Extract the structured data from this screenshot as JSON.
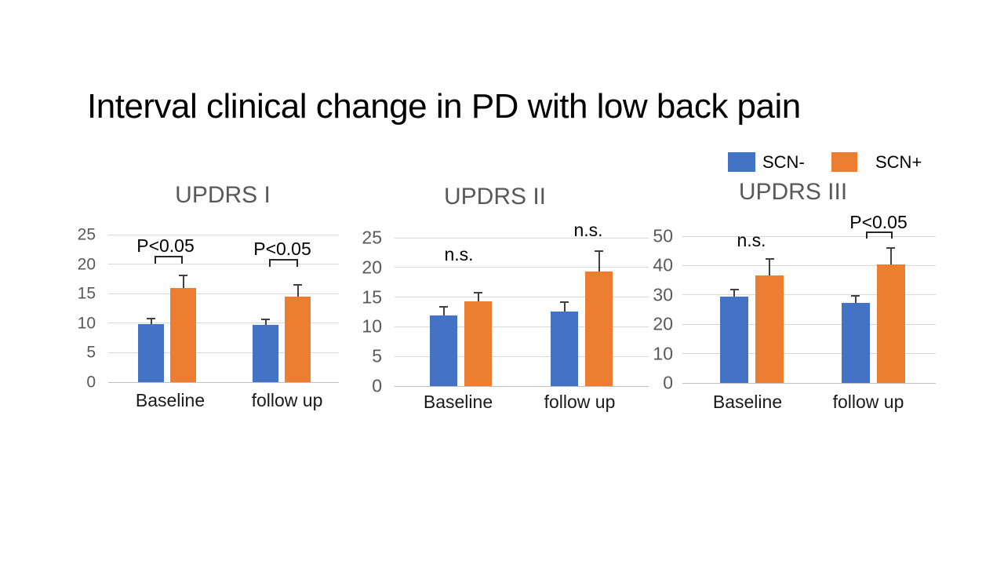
{
  "slide": {
    "title": "Interval clinical change in PD with low back pain"
  },
  "legend": {
    "items": [
      {
        "label": "SCN-",
        "color": "#4472C4"
      },
      {
        "label": "SCN+",
        "color": "#ED7D31"
      }
    ]
  },
  "colors": {
    "series_scn_minus": "#4472C4",
    "series_scn_plus": "#ED7D31",
    "chart_title_gray": "#595959",
    "gridline": "#D9D9D9",
    "axis_line": "#BFBFBF",
    "error_bar": "#404040"
  },
  "chart_data": [
    {
      "type": "bar",
      "title": "UPDRS I",
      "categories": [
        "Baseline",
        "follow up"
      ],
      "series": [
        {
          "name": "SCN-",
          "color": "#4472C4",
          "values": [
            9.8,
            9.7
          ],
          "errors_plus": [
            1.0,
            1.0
          ]
        },
        {
          "name": "SCN+",
          "color": "#ED7D31",
          "values": [
            16.0,
            14.5
          ],
          "errors_plus": [
            2.1,
            2.0
          ]
        }
      ],
      "ylim": [
        0,
        25
      ],
      "yticks": [
        0,
        5,
        10,
        15,
        20,
        25
      ],
      "grid": true,
      "annotations": [
        {
          "text": "P<0.05",
          "category": "Baseline",
          "bracket": true
        },
        {
          "text": "P<0.05",
          "category": "follow up",
          "bracket": true
        }
      ]
    },
    {
      "type": "bar",
      "title": "UPDRS II",
      "categories": [
        "Baseline",
        "follow up"
      ],
      "series": [
        {
          "name": "SCN-",
          "color": "#4472C4",
          "values": [
            11.9,
            12.6
          ],
          "errors_plus": [
            1.5,
            1.6
          ]
        },
        {
          "name": "SCN+",
          "color": "#ED7D31",
          "values": [
            14.3,
            19.3
          ],
          "errors_plus": [
            1.5,
            3.5
          ]
        }
      ],
      "ylim": [
        0,
        25
      ],
      "yticks": [
        0,
        5,
        10,
        15,
        20,
        25
      ],
      "grid": true,
      "annotations": [
        {
          "text": "n.s.",
          "category": "Baseline",
          "bracket": false
        },
        {
          "text": "n.s.",
          "category": "follow up",
          "bracket": false
        }
      ]
    },
    {
      "type": "bar",
      "title": "UPDRS III",
      "categories": [
        "Baseline",
        "follow up"
      ],
      "series": [
        {
          "name": "SCN-",
          "color": "#4472C4",
          "values": [
            29.4,
            27.4
          ],
          "errors_plus": [
            2.5,
            2.4
          ]
        },
        {
          "name": "SCN+",
          "color": "#ED7D31",
          "values": [
            36.5,
            40.3
          ],
          "errors_plus": [
            5.8,
            5.6
          ]
        }
      ],
      "ylim": [
        0,
        50
      ],
      "yticks": [
        0,
        10,
        20,
        30,
        40,
        50
      ],
      "grid": true,
      "annotations": [
        {
          "text": "n.s.",
          "category": "Baseline",
          "bracket": false
        },
        {
          "text": "P<0.05",
          "category": "follow up",
          "bracket": true
        }
      ]
    }
  ]
}
